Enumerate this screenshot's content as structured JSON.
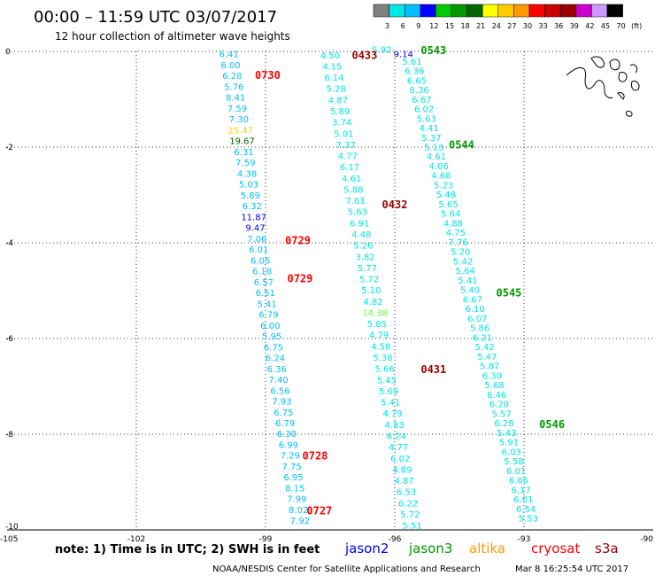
{
  "header": {
    "title": "00:00 – 11:59 UTC 03/07/2017",
    "subtitle": "12 hour collection of altimeter wave heights"
  },
  "color_scale": {
    "labels": [
      "3",
      "6",
      "9",
      "12",
      "15",
      "18",
      "21",
      "24",
      "27",
      "30",
      "33",
      "36",
      "39",
      "42",
      "45",
      "70",
      "(ft)"
    ],
    "colors": [
      "#808080",
      "#00e5e5",
      "#00bfff",
      "#0000ff",
      "#00cc00",
      "#009900",
      "#006600",
      "#ffff00",
      "#ffcc00",
      "#ff9900",
      "#ff0000",
      "#cc0000",
      "#990000",
      "#cc00cc",
      "#cc99ff",
      "#000000"
    ]
  },
  "footer": {
    "note": "note: 1) Time is in UTC; 2) SWH is in feet",
    "credit": "NOAA/NESDIS Center for Satellite Applications and Research",
    "timestamp": "Mar  8 16:25:54 UTC 2017"
  },
  "satellites": [
    {
      "name": "jason2",
      "color": "#0000ff"
    },
    {
      "name": "jason3",
      "color": "#009900"
    },
    {
      "name": "altika",
      "color": "#ff9900"
    },
    {
      "name": "cryosat",
      "color": "#ff0000"
    },
    {
      "name": "s3a",
      "color": "#990000"
    }
  ],
  "chart_data": {
    "type": "scatter",
    "xlim": [
      -105,
      -90
    ],
    "ylim": [
      -10,
      0
    ],
    "x_ticks": [
      -105,
      -102,
      -99,
      -96,
      -93,
      -90
    ],
    "x_tick_labels": [
      "-105",
      "-102",
      "-99",
      "-96",
      "-93",
      "-90"
    ],
    "y_ticks": [
      0,
      -2,
      -4,
      -6,
      -8,
      -10
    ],
    "y_tick_labels": [
      "0",
      "-2",
      "-4",
      "-6",
      "-8",
      "-10"
    ],
    "grid": true,
    "tracks": [
      {
        "name": "track-a",
        "start": [
          -99.85,
          -0.05
        ],
        "end": [
          -98.2,
          -9.8
        ],
        "values": [
          "6.41",
          "6.00",
          "6.28",
          "5.76",
          "8.41",
          "7.59",
          "7.30",
          "25.47",
          "19.67",
          "6.31",
          "7.59",
          "4.38",
          "5.03",
          "5.89",
          "6.32",
          "11.87",
          "9.47",
          "7.06",
          "6.01",
          "6.05",
          "6.18",
          "6.57",
          "6.51",
          "5.41",
          "6.79",
          "6.00",
          "5.95",
          "6.75",
          "6.24",
          "6.36",
          "7.40",
          "6.56",
          "7.93",
          "6.75",
          "6.79",
          "6.30",
          "6.99",
          "7.29",
          "7.75",
          "6.95",
          "8.15",
          "7.99",
          "8.02",
          "7.92"
        ],
        "colors": [
          "#00bfff",
          "#00bfff",
          "#00bfff",
          "#00bfff",
          "#00bfff",
          "#00bfff",
          "#00bfff",
          "#ffcc00",
          "#006600",
          "#00bfff",
          "#00bfff",
          "#00bfff",
          "#00bfff",
          "#00bfff",
          "#00bfff",
          "#0000ff",
          "#0000ff",
          "#00bfff",
          "#00bfff",
          "#00bfff",
          "#00bfff",
          "#00bfff",
          "#00bfff",
          "#00bfff",
          "#00bfff",
          "#00bfff",
          "#00bfff",
          "#00bfff",
          "#00bfff",
          "#00bfff",
          "#00bfff",
          "#00bfff",
          "#00bfff",
          "#00bfff",
          "#00bfff",
          "#00bfff",
          "#00bfff",
          "#00bfff",
          "#00bfff",
          "#00bfff",
          "#00bfff",
          "#00bfff",
          "#00bfff",
          "#00bfff"
        ]
      },
      {
        "name": "track-b",
        "start": [
          -97.5,
          -0.07
        ],
        "end": [
          -95.6,
          -9.9
        ],
        "values": [
          "4.50",
          "4.15",
          "6.14",
          "5.28",
          "4.87",
          "5.89",
          "3.74",
          "5.01",
          "7.37",
          "4.77",
          "6.17",
          "4.61",
          "5.88",
          "7.61",
          "5.63",
          "6.91",
          "4.48",
          "5.26",
          "3.82",
          "5.77",
          "5.72",
          "5.10",
          "4.82",
          "14.38",
          "5.85",
          "4.79",
          "4.58",
          "5.38",
          "5.66",
          "5.45",
          "5.69",
          "5.41",
          "4.79",
          "4.83",
          "6.24",
          "4.77",
          "6.02",
          "4.89",
          "4.87",
          "6.53",
          "6.22",
          "5.72",
          "5.51"
        ],
        "colors": [
          "#00e5e5",
          "#00e5e5",
          "#00e5e5",
          "#00e5e5",
          "#00e5e5",
          "#00e5e5",
          "#00e5e5",
          "#00e5e5",
          "#00e5e5",
          "#00e5e5",
          "#00e5e5",
          "#00e5e5",
          "#00e5e5",
          "#00e5e5",
          "#00e5e5",
          "#00e5e5",
          "#00e5e5",
          "#00e5e5",
          "#00e5e5",
          "#00e5e5",
          "#00e5e5",
          "#00e5e5",
          "#00e5e5",
          "#66ff33",
          "#00e5e5",
          "#00e5e5",
          "#00e5e5",
          "#00e5e5",
          "#00e5e5",
          "#00e5e5",
          "#00e5e5",
          "#00e5e5",
          "#00e5e5",
          "#00e5e5",
          "#00e5e5",
          "#00e5e5",
          "#00e5e5",
          "#00e5e5",
          "#00e5e5",
          "#00e5e5",
          "#00e5e5",
          "#00e5e5",
          "#00e5e5"
        ]
      },
      {
        "name": "track-c",
        "start": [
          -96.3,
          0.05
        ],
        "end": [
          -95.8,
          -0.05
        ],
        "values": [
          "5.92",
          "9.14"
        ],
        "colors": [
          "#00e5e5",
          "#0000ff"
        ]
      },
      {
        "name": "track-d",
        "start": [
          -95.6,
          -0.2
        ],
        "end": [
          -92.9,
          -9.75
        ],
        "values": [
          "5.61",
          "6.36",
          "6.65",
          "8.36",
          "6.67",
          "6.02",
          "5.63",
          "4.41",
          "5.37",
          "5.13",
          "4.61",
          "4.06",
          "4.68",
          "5.23",
          "5.48",
          "5.65",
          "5.64",
          "4.88",
          "4.75",
          "7.76",
          "5.20",
          "5.42",
          "5.64",
          "5.41",
          "5.40",
          "6.67",
          "6.10",
          "6.07",
          "5.86",
          "6.21",
          "5.42",
          "5.47",
          "5.87",
          "6.30",
          "5.68",
          "6.46",
          "6.28",
          "5.57",
          "6.28",
          "5.43",
          "5.91",
          "6.03",
          "5.58",
          "6.01",
          "6.06",
          "6.17",
          "6.01",
          "6.54",
          "5.53"
        ],
        "colors": [
          "#00e5e5",
          "#00e5e5",
          "#00e5e5",
          "#00e5e5",
          "#00e5e5",
          "#00e5e5",
          "#00e5e5",
          "#00e5e5",
          "#00e5e5",
          "#00e5e5",
          "#00e5e5",
          "#00e5e5",
          "#00e5e5",
          "#00e5e5",
          "#00e5e5",
          "#00e5e5",
          "#00e5e5",
          "#00e5e5",
          "#00e5e5",
          "#00e5e5",
          "#00e5e5",
          "#00e5e5",
          "#00e5e5",
          "#00e5e5",
          "#00e5e5",
          "#00e5e5",
          "#00e5e5",
          "#00e5e5",
          "#00e5e5",
          "#00e5e5",
          "#00e5e5",
          "#00e5e5",
          "#00e5e5",
          "#00e5e5",
          "#00e5e5",
          "#00e5e5",
          "#00e5e5",
          "#00e5e5",
          "#00e5e5",
          "#00e5e5",
          "#00e5e5",
          "#00e5e5",
          "#00e5e5",
          "#00e5e5",
          "#00e5e5",
          "#00e5e5",
          "#00e5e5",
          "#00e5e5",
          "#00e5e5"
        ]
      }
    ],
    "time_labels": [
      {
        "text": "0543",
        "x": -95.1,
        "y": 0.02,
        "color": "#009900"
      },
      {
        "text": "0433",
        "x": -96.7,
        "y": -0.08,
        "color": "#990000"
      },
      {
        "text": "0730",
        "x": -98.95,
        "y": -0.5,
        "color": "#ff0000"
      },
      {
        "text": "0544",
        "x": -94.45,
        "y": -1.95,
        "color": "#009900"
      },
      {
        "text": "0432",
        "x": -96.0,
        "y": -3.2,
        "color": "#990000"
      },
      {
        "text": "0729",
        "x": -98.25,
        "y": -3.95,
        "color": "#ff0000"
      },
      {
        "text": "0729",
        "x": -98.2,
        "y": -4.75,
        "color": "#ff0000"
      },
      {
        "text": "0545",
        "x": -93.35,
        "y": -5.05,
        "color": "#009900"
      },
      {
        "text": "0431",
        "x": -95.1,
        "y": -6.65,
        "color": "#990000"
      },
      {
        "text": "0546",
        "x": -92.35,
        "y": -7.8,
        "color": "#009900"
      },
      {
        "text": "0728",
        "x": -97.85,
        "y": -8.45,
        "color": "#ff0000"
      },
      {
        "text": "0727",
        "x": -97.75,
        "y": -9.6,
        "color": "#ff0000"
      }
    ]
  }
}
